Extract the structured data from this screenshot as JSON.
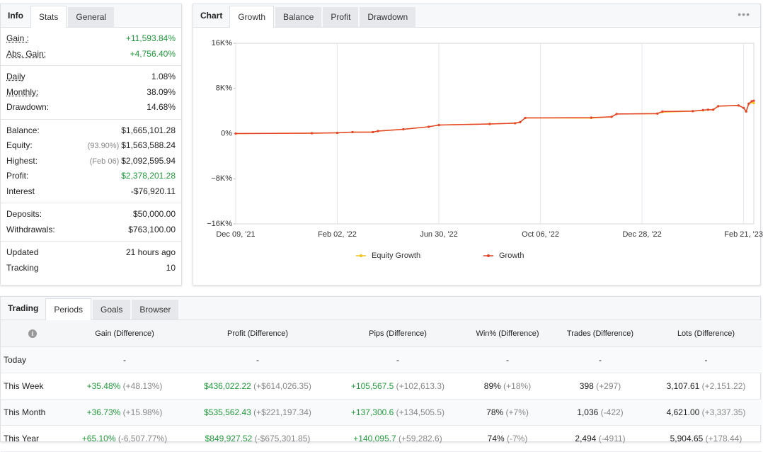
{
  "stats": {
    "label": "Info",
    "tabs": [
      "Stats",
      "General"
    ],
    "active": 0,
    "groups": [
      [
        {
          "label": "Gain :",
          "value": "+11,593.84%",
          "tone": "positive",
          "underline": true
        },
        {
          "label": "Abs. Gain:",
          "value": "+4,756.40%",
          "tone": "positive",
          "underline": true
        }
      ],
      [
        {
          "label": "Daily",
          "value": "1.08%",
          "underline": true
        },
        {
          "label": "Monthly:",
          "value": "38.09%",
          "underline": true
        },
        {
          "label": "Drawdown:",
          "value": "14.68%"
        }
      ],
      [
        {
          "label": "Balance:",
          "value": "$1,665,101.28"
        },
        {
          "label": "Equity:",
          "note": "(93.90%)",
          "value": "$1,563,588.24"
        },
        {
          "label": "Highest:",
          "note": "(Feb 06)",
          "value": "$2,092,595.94"
        },
        {
          "label": "Profit:",
          "value": "$2,378,201.28",
          "tone": "positive"
        },
        {
          "label": "Interest",
          "value": "-$76,920.11"
        }
      ],
      [
        {
          "label": "Deposits:",
          "value": "$50,000.00"
        },
        {
          "label": "Withdrawals:",
          "value": "$763,100.00"
        }
      ],
      [
        {
          "label": "Updated",
          "value": "21 hours ago"
        },
        {
          "label": "Tracking",
          "value": "10"
        }
      ]
    ]
  },
  "growth": {
    "type": "line",
    "label": "Chart",
    "tabs": [
      "Growth",
      "Balance",
      "Profit",
      "Drawdown"
    ],
    "active": 0,
    "x": [
      0,
      15,
      20,
      23,
      27,
      28,
      33,
      38,
      40,
      50,
      55,
      56,
      57,
      70,
      74,
      75,
      83,
      84,
      90,
      92,
      93,
      94,
      95,
      99,
      100,
      100.5,
      101,
      101.6,
      102
    ],
    "series": [
      {
        "name": "Equity Growth",
        "color": "#f2c21b",
        "values": [
          0,
          60,
          130,
          250,
          250,
          440,
          760,
          1200,
          1510,
          1700,
          1830,
          2020,
          2770,
          2750,
          2960,
          3460,
          3530,
          3800,
          3970,
          4100,
          4220,
          4220,
          4850,
          4980,
          4540,
          3900,
          5290,
          5500,
          5400
        ]
      },
      {
        "name": "Growth",
        "color": "#e5432b",
        "values": [
          0,
          60,
          130,
          250,
          250,
          440,
          760,
          1200,
          1510,
          1700,
          1830,
          2020,
          2770,
          2830,
          2960,
          3460,
          3530,
          3900,
          3970,
          4160,
          4220,
          4220,
          4850,
          4980,
          4540,
          3900,
          5290,
          5730,
          5800
        ]
      }
    ],
    "xlim": [
      0,
      102
    ],
    "xticks": [
      {
        "value": 0,
        "label": "Dec 09, '21"
      },
      {
        "value": 20,
        "label": "Feb 02, '22"
      },
      {
        "value": 40,
        "label": "Jun 30, '22"
      },
      {
        "value": 60,
        "label": "Oct 06, '22"
      },
      {
        "value": 80,
        "label": "Dec 28, '22"
      },
      {
        "value": 100,
        "label": "Feb 21, '23"
      }
    ],
    "ylim": [
      -16000,
      16000
    ],
    "yticks": [
      {
        "value": 16000,
        "label": "16K%"
      },
      {
        "value": 8000,
        "label": "8K%"
      },
      {
        "value": 0,
        "label": "0%"
      },
      {
        "value": -8000,
        "label": "−8K%"
      },
      {
        "value": -16000,
        "label": "−16K%"
      }
    ],
    "grid": true
  },
  "periods": {
    "label": "Trading",
    "tabs": [
      "Periods",
      "Goals",
      "Browser"
    ],
    "active": 0,
    "columns": [
      "Gain (Difference)",
      "Profit (Difference)",
      "Pips (Difference)",
      "Win% (Difference)",
      "Trades (Difference)",
      "Lots (Difference)"
    ],
    "positive_columns": [
      0,
      1,
      2
    ],
    "rows": [
      {
        "label": "Today",
        "cells": [
          [
            "-"
          ],
          [
            "-"
          ],
          [
            "-"
          ],
          [
            "-"
          ],
          [
            "-"
          ],
          [
            "-"
          ]
        ]
      },
      {
        "label": "This Week",
        "cells": [
          [
            "+35.48%",
            "(+48.13%)"
          ],
          [
            "$436,022.22",
            "(+$614,026.35)"
          ],
          [
            "+105,567.5",
            "(+102,613.3)"
          ],
          [
            "89%",
            "(+18%)"
          ],
          [
            "398",
            "(+297)"
          ],
          [
            "3,107.61",
            "(+2,151.22)"
          ]
        ]
      },
      {
        "label": "This Month",
        "cells": [
          [
            "+36.73%",
            "(+15.98%)"
          ],
          [
            "$535,562.43",
            "(+$221,197.34)"
          ],
          [
            "+137,300.6",
            "(+134,505.5)"
          ],
          [
            "78%",
            "(+7%)"
          ],
          [
            "1,036",
            "(-422)"
          ],
          [
            "4,621.00",
            "(+3,337.35)"
          ]
        ]
      },
      {
        "label": "This Year",
        "cells": [
          [
            "+65.10%",
            "(-6,507.77%)"
          ],
          [
            "$849,927.52",
            "(-$675,301.85)"
          ],
          [
            "+140,095.7",
            "(+59,282.6)"
          ],
          [
            "74%",
            "(-7%)"
          ],
          [
            "2,494",
            "(-4911)"
          ],
          [
            "5,904.65",
            "(+178.44)"
          ]
        ]
      }
    ]
  }
}
